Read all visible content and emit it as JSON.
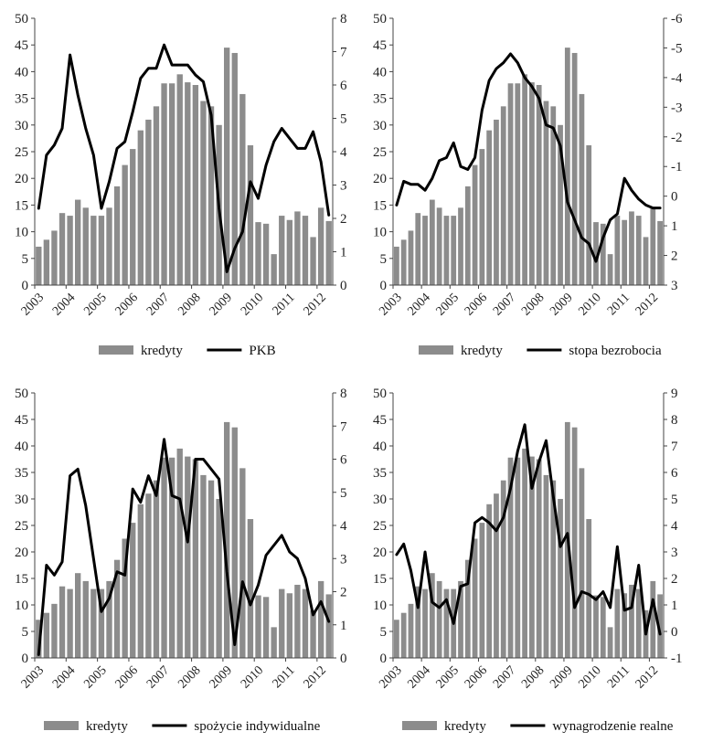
{
  "chart_data": [
    {
      "type": "bar+line",
      "categories": [
        "2003Q1",
        "2003Q2",
        "2003Q3",
        "2003Q4",
        "2004Q1",
        "2004Q2",
        "2004Q3",
        "2004Q4",
        "2005Q1",
        "2005Q2",
        "2005Q3",
        "2005Q4",
        "2006Q1",
        "2006Q2",
        "2006Q3",
        "2006Q4",
        "2007Q1",
        "2007Q2",
        "2007Q3",
        "2007Q4",
        "2008Q1",
        "2008Q2",
        "2008Q3",
        "2008Q4",
        "2009Q1",
        "2009Q2",
        "2009Q3",
        "2009Q4",
        "2010Q1",
        "2010Q2",
        "2010Q3",
        "2010Q4",
        "2011Q1",
        "2011Q2",
        "2011Q3",
        "2011Q4",
        "2012Q1",
        "2012Q2"
      ],
      "x_tick_labels": [
        "2003",
        "2004",
        "2005",
        "2006",
        "2007",
        "2008",
        "2009",
        "2010",
        "2011",
        "2012"
      ],
      "y_left": {
        "min": 0,
        "max": 50,
        "ticks": [
          "0",
          "5",
          "10",
          "15",
          "20",
          "25",
          "30",
          "35",
          "40",
          "45",
          "50"
        ]
      },
      "y_right": {
        "min": 0,
        "max": 8,
        "reversed": false,
        "ticks": [
          "0",
          "1",
          "2",
          "3",
          "4",
          "5",
          "6",
          "7",
          "8"
        ]
      },
      "series": [
        {
          "name": "kredyty",
          "axis": "left",
          "kind": "bar",
          "color": "#8c8c8c",
          "values": [
            7.2,
            8.5,
            10.2,
            13.5,
            13,
            16,
            14.5,
            13,
            13,
            14.5,
            18.5,
            22.5,
            25.5,
            29,
            31,
            33.5,
            37.8,
            37.8,
            39.5,
            38,
            37.5,
            34.5,
            33.5,
            30,
            44.5,
            43.5,
            35.8,
            26.2,
            11.8,
            11.5,
            5.8,
            13,
            12.2,
            13.8,
            13,
            9,
            14.5,
            12
          ]
        },
        {
          "name": "PKB",
          "axis": "right",
          "kind": "line",
          "color": "#000000",
          "values": [
            2.3,
            3.9,
            4.2,
            4.7,
            6.9,
            5.7,
            4.7,
            3.9,
            2.3,
            3.1,
            4.1,
            4.3,
            5.2,
            6.2,
            6.5,
            6.5,
            7.2,
            6.6,
            6.6,
            6.6,
            6.3,
            6.1,
            5.1,
            2.3,
            0.4,
            1.1,
            1.6,
            3.1,
            2.6,
            3.6,
            4.3,
            4.7,
            4.4,
            4.1,
            4.1,
            4.6,
            3.7,
            2.1
          ]
        }
      ]
    },
    {
      "type": "bar+line",
      "categories": [
        "2003Q1",
        "2003Q2",
        "2003Q3",
        "2003Q4",
        "2004Q1",
        "2004Q2",
        "2004Q3",
        "2004Q4",
        "2005Q1",
        "2005Q2",
        "2005Q3",
        "2005Q4",
        "2006Q1",
        "2006Q2",
        "2006Q3",
        "2006Q4",
        "2007Q1",
        "2007Q2",
        "2007Q3",
        "2007Q4",
        "2008Q1",
        "2008Q2",
        "2008Q3",
        "2008Q4",
        "2009Q1",
        "2009Q2",
        "2009Q3",
        "2009Q4",
        "2010Q1",
        "2010Q2",
        "2010Q3",
        "2010Q4",
        "2011Q1",
        "2011Q2",
        "2011Q3",
        "2011Q4",
        "2012Q1",
        "2012Q2"
      ],
      "x_tick_labels": [
        "2003",
        "2004",
        "2005",
        "2006",
        "2007",
        "2008",
        "2009",
        "2010",
        "2011",
        "2012"
      ],
      "y_left": {
        "min": 0,
        "max": 50,
        "ticks": [
          "0",
          "5",
          "10",
          "15",
          "20",
          "25",
          "30",
          "35",
          "40",
          "45",
          "50"
        ]
      },
      "y_right": {
        "min": 3,
        "max": -6,
        "reversed": true,
        "ticks": [
          "3",
          "2",
          "1",
          "0",
          "-1",
          "-2",
          "-3",
          "-4",
          "-5",
          "-6"
        ]
      },
      "series": [
        {
          "name": "kredyty",
          "axis": "left",
          "kind": "bar",
          "color": "#8c8c8c",
          "values": [
            7.2,
            8.5,
            10.2,
            13.5,
            13,
            16,
            14.5,
            13,
            13,
            14.5,
            18.5,
            22.5,
            25.5,
            29,
            31,
            33.5,
            37.8,
            37.8,
            39.5,
            38,
            37.5,
            34.5,
            33.5,
            30,
            44.5,
            43.5,
            35.8,
            26.2,
            11.8,
            11.5,
            5.8,
            13,
            12.2,
            13.8,
            13,
            9,
            14.5,
            12
          ]
        },
        {
          "name": "stopa bezrobocia",
          "axis": "right",
          "kind": "line",
          "color": "#000000",
          "values": [
            0.3,
            -0.5,
            -0.4,
            -0.4,
            -0.2,
            -0.6,
            -1.2,
            -1.3,
            -1.8,
            -1.0,
            -0.9,
            -1.3,
            -2.9,
            -3.9,
            -4.3,
            -4.5,
            -4.8,
            -4.5,
            -4.0,
            -3.7,
            -3.3,
            -2.4,
            -2.3,
            -1.7,
            0.2,
            0.8,
            1.4,
            1.6,
            2.2,
            1.4,
            0.8,
            0.6,
            -0.6,
            -0.2,
            0.1,
            0.3,
            0.4,
            0.4
          ]
        }
      ]
    },
    {
      "type": "bar+line",
      "categories": [
        "2003Q1",
        "2003Q2",
        "2003Q3",
        "2003Q4",
        "2004Q1",
        "2004Q2",
        "2004Q3",
        "2004Q4",
        "2005Q1",
        "2005Q2",
        "2005Q3",
        "2005Q4",
        "2006Q1",
        "2006Q2",
        "2006Q3",
        "2006Q4",
        "2007Q1",
        "2007Q2",
        "2007Q3",
        "2007Q4",
        "2008Q1",
        "2008Q2",
        "2008Q3",
        "2008Q4",
        "2009Q1",
        "2009Q2",
        "2009Q3",
        "2009Q4",
        "2010Q1",
        "2010Q2",
        "2010Q3",
        "2010Q4",
        "2011Q1",
        "2011Q2",
        "2011Q3",
        "2011Q4",
        "2012Q1",
        "2012Q2"
      ],
      "x_tick_labels": [
        "2003",
        "2004",
        "2005",
        "2006",
        "2007",
        "2008",
        "2009",
        "2010",
        "2011",
        "2012"
      ],
      "y_left": {
        "min": 0,
        "max": 50,
        "ticks": [
          "0",
          "5",
          "10",
          "15",
          "20",
          "25",
          "30",
          "35",
          "40",
          "45",
          "50"
        ]
      },
      "y_right": {
        "min": 0,
        "max": 8,
        "reversed": false,
        "ticks": [
          "0",
          "1",
          "2",
          "3",
          "4",
          "5",
          "6",
          "7",
          "8"
        ]
      },
      "series": [
        {
          "name": "kredyty",
          "axis": "left",
          "kind": "bar",
          "color": "#8c8c8c",
          "values": [
            7.2,
            8.5,
            10.2,
            13.5,
            13,
            16,
            14.5,
            13,
            13,
            14.5,
            18.5,
            22.5,
            25.5,
            29,
            31,
            33.5,
            37.8,
            37.8,
            39.5,
            38,
            37.5,
            34.5,
            33.5,
            30,
            44.5,
            43.5,
            35.8,
            26.2,
            11.8,
            11.5,
            5.8,
            13,
            12.2,
            13.8,
            13,
            9,
            14.5,
            12
          ]
        },
        {
          "name": "spożycie indywidualne",
          "axis": "right",
          "kind": "line",
          "color": "#000000",
          "values": [
            0.1,
            2.8,
            2.5,
            2.9,
            5.5,
            5.7,
            4.6,
            3.0,
            1.4,
            1.8,
            2.6,
            2.5,
            5.1,
            4.7,
            5.5,
            4.9,
            6.6,
            4.9,
            4.8,
            3.5,
            6.0,
            6.0,
            5.7,
            5.4,
            2.6,
            0.4,
            2.3,
            1.6,
            2.2,
            3.1,
            3.4,
            3.7,
            3.2,
            3.0,
            2.4,
            1.3,
            1.7,
            1.1
          ]
        }
      ]
    },
    {
      "type": "bar+line",
      "categories": [
        "2003Q1",
        "2003Q2",
        "2003Q3",
        "2003Q4",
        "2004Q1",
        "2004Q2",
        "2004Q3",
        "2004Q4",
        "2005Q1",
        "2005Q2",
        "2005Q3",
        "2005Q4",
        "2006Q1",
        "2006Q2",
        "2006Q3",
        "2006Q4",
        "2007Q1",
        "2007Q2",
        "2007Q3",
        "2007Q4",
        "2008Q1",
        "2008Q2",
        "2008Q3",
        "2008Q4",
        "2009Q1",
        "2009Q2",
        "2009Q3",
        "2009Q4",
        "2010Q1",
        "2010Q2",
        "2010Q3",
        "2010Q4",
        "2011Q1",
        "2011Q2",
        "2011Q3",
        "2011Q4",
        "2012Q1",
        "2012Q2"
      ],
      "x_tick_labels": [
        "2003",
        "2004",
        "2005",
        "2006",
        "2007",
        "2008",
        "2009",
        "2010",
        "2011",
        "2012"
      ],
      "y_left": {
        "min": 0,
        "max": 50,
        "ticks": [
          "0",
          "5",
          "10",
          "15",
          "20",
          "25",
          "30",
          "35",
          "40",
          "45",
          "50"
        ]
      },
      "y_right": {
        "min": -1,
        "max": 9,
        "reversed": false,
        "ticks": [
          "-1",
          "0",
          "1",
          "2",
          "3",
          "4",
          "5",
          "6",
          "7",
          "8",
          "9"
        ]
      },
      "series": [
        {
          "name": "kredyty",
          "axis": "left",
          "kind": "bar",
          "color": "#8c8c8c",
          "values": [
            7.2,
            8.5,
            10.2,
            13.5,
            13,
            16,
            14.5,
            13,
            13,
            14.5,
            18.5,
            22.5,
            25.5,
            29,
            31,
            33.5,
            37.8,
            37.8,
            39.5,
            38,
            37.5,
            34.5,
            33.5,
            30,
            44.5,
            43.5,
            35.8,
            26.2,
            11.8,
            11.5,
            5.8,
            13,
            12.2,
            13.8,
            13,
            9,
            14.5,
            12
          ]
        },
        {
          "name": "wynagrodzenie realne",
          "axis": "right",
          "kind": "line",
          "color": "#000000",
          "values": [
            2.9,
            3.3,
            2.3,
            0.9,
            3.0,
            1.1,
            0.9,
            1.2,
            0.3,
            1.7,
            1.8,
            4.1,
            4.3,
            4.1,
            3.8,
            4.3,
            5.4,
            6.8,
            7.8,
            5.4,
            6.4,
            7.2,
            5.1,
            3.2,
            3.7,
            0.9,
            1.5,
            1.4,
            1.2,
            1.5,
            0.9,
            3.2,
            0.8,
            0.9,
            2.5,
            -0.1,
            1.2,
            -0.1
          ]
        }
      ]
    }
  ]
}
